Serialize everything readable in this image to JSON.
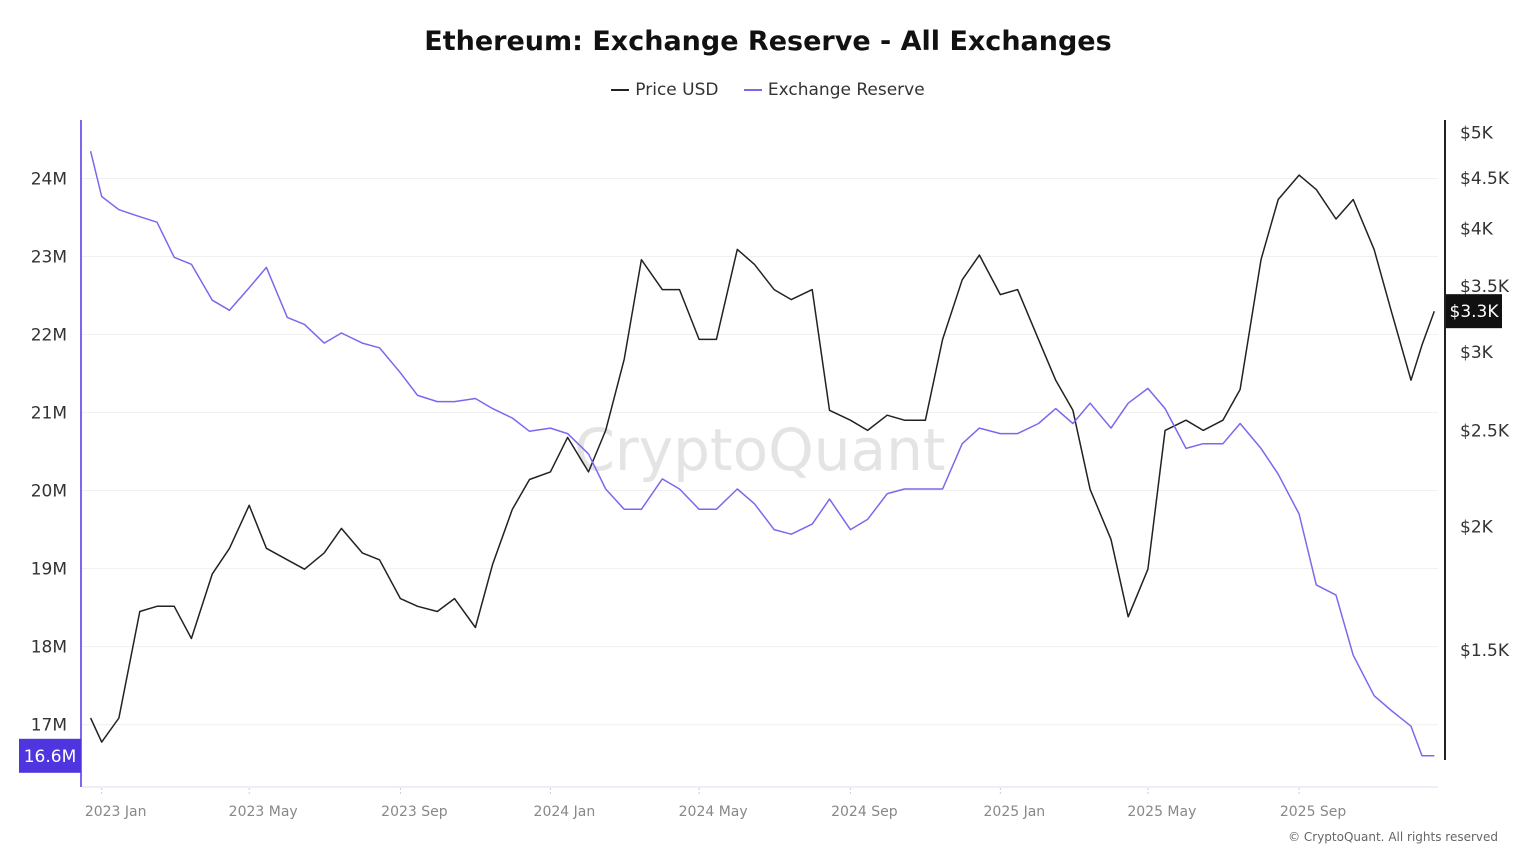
{
  "chart_data": {
    "type": "line",
    "title": "Ethereum: Exchange Reserve - All Exchanges",
    "legend_placement": "top",
    "grid": true,
    "watermark": "CryptoQuant",
    "copyright": "© CryptoQuant. All rights reserved",
    "xlim": [
      "2022-12-16",
      "2025-12-23"
    ],
    "x_ticks": [
      {
        "date": "2023-01-01",
        "label": "2023 Jan"
      },
      {
        "date": "2023-05-01",
        "label": "2023 May"
      },
      {
        "date": "2023-09-01",
        "label": "2023 Sep"
      },
      {
        "date": "2024-01-01",
        "label": "2024 Jan"
      },
      {
        "date": "2024-05-01",
        "label": "2024 May"
      },
      {
        "date": "2024-09-01",
        "label": "2024 Sep"
      },
      {
        "date": "2025-01-01",
        "label": "2025 Jan"
      },
      {
        "date": "2025-05-01",
        "label": "2025 May"
      },
      {
        "date": "2025-09-01",
        "label": "2025 Sep"
      }
    ],
    "left_axis": {
      "scale": "linear",
      "ylim": [
        16.2,
        24.75
      ],
      "color": "#7b68ee",
      "ticks": [
        {
          "v": 17,
          "label": "17M"
        },
        {
          "v": 18,
          "label": "18M"
        },
        {
          "v": 19,
          "label": "19M"
        },
        {
          "v": 20,
          "label": "20M"
        },
        {
          "v": 21,
          "label": "21M"
        },
        {
          "v": 22,
          "label": "22M"
        },
        {
          "v": 23,
          "label": "23M"
        },
        {
          "v": 24,
          "label": "24M"
        }
      ],
      "current_label": "16.6M",
      "current_value": 16.6,
      "current_color": "#4f35e0"
    },
    "right_axis": {
      "scale": "log",
      "ylim": [
        1090,
        5150
      ],
      "color": "#222222",
      "ticks": [
        {
          "v": 1500,
          "label": "$1.5K"
        },
        {
          "v": 2000,
          "label": "$2K"
        },
        {
          "v": 2500,
          "label": "$2.5K"
        },
        {
          "v": 3000,
          "label": "$3K"
        },
        {
          "v": 3500,
          "label": "$3.5K"
        },
        {
          "v": 4000,
          "label": "$4K"
        },
        {
          "v": 4500,
          "label": "$4.5K"
        },
        {
          "v": 5000,
          "label": "$5K"
        }
      ],
      "current_label": "$3.3K",
      "current_value": 3300,
      "current_color": "#111111"
    },
    "x": [
      "2022-12-23",
      "2023-01-01",
      "2023-01-15",
      "2023-02-01",
      "2023-02-15",
      "2023-03-01",
      "2023-03-15",
      "2023-04-01",
      "2023-04-15",
      "2023-05-01",
      "2023-05-15",
      "2023-06-01",
      "2023-06-15",
      "2023-07-01",
      "2023-07-15",
      "2023-08-01",
      "2023-08-15",
      "2023-09-01",
      "2023-09-15",
      "2023-10-01",
      "2023-10-15",
      "2023-11-01",
      "2023-11-15",
      "2023-12-01",
      "2023-12-15",
      "2024-01-01",
      "2024-01-15",
      "2024-02-01",
      "2024-02-15",
      "2024-03-01",
      "2024-03-15",
      "2024-04-01",
      "2024-04-15",
      "2024-05-01",
      "2024-05-15",
      "2024-06-01",
      "2024-06-15",
      "2024-07-01",
      "2024-07-15",
      "2024-08-01",
      "2024-08-15",
      "2024-09-01",
      "2024-09-15",
      "2024-10-01",
      "2024-10-15",
      "2024-11-01",
      "2024-11-15",
      "2024-12-01",
      "2024-12-15",
      "2025-01-01",
      "2025-01-15",
      "2025-02-01",
      "2025-02-15",
      "2025-03-01",
      "2025-03-15",
      "2025-04-01",
      "2025-04-15",
      "2025-05-01",
      "2025-05-15",
      "2025-06-01",
      "2025-06-15",
      "2025-07-01",
      "2025-07-15",
      "2025-08-01",
      "2025-08-15",
      "2025-09-01",
      "2025-09-15",
      "2025-10-01",
      "2025-10-15",
      "2025-11-01",
      "2025-11-15",
      "2025-12-01",
      "2025-12-10",
      "2025-12-20"
    ],
    "series": [
      {
        "name": "Price USD",
        "axis": "right",
        "color": "#222222",
        "values": [
          1280,
          1210,
          1280,
          1640,
          1660,
          1660,
          1540,
          1790,
          1900,
          2100,
          1900,
          1850,
          1810,
          1880,
          1990,
          1880,
          1850,
          1690,
          1660,
          1640,
          1690,
          1580,
          1830,
          2080,
          2230,
          2270,
          2460,
          2270,
          2500,
          2950,
          3720,
          3470,
          3470,
          3090,
          3090,
          3810,
          3680,
          3470,
          3390,
          3470,
          2620,
          2560,
          2500,
          2590,
          2560,
          2560,
          3090,
          3550,
          3760,
          3430,
          3470,
          3090,
          2810,
          2620,
          2180,
          1940,
          1620,
          1810,
          2500,
          2560,
          2500,
          2560,
          2750,
          3720,
          4280,
          4530,
          4380,
          4090,
          4280,
          3810,
          3300,
          2810,
          3050,
          3300
        ]
      },
      {
        "name": "Exchange Reserve",
        "axis": "left",
        "color": "#7b68ee",
        "values": [
          24.35,
          23.77,
          23.6,
          23.51,
          23.44,
          22.99,
          22.9,
          22.44,
          22.31,
          22.6,
          22.86,
          22.22,
          22.13,
          21.89,
          22.02,
          21.89,
          21.83,
          21.51,
          21.22,
          21.14,
          21.14,
          21.18,
          21.05,
          20.93,
          20.76,
          20.8,
          20.73,
          20.47,
          20.02,
          19.76,
          19.76,
          20.15,
          20.02,
          19.76,
          19.76,
          20.02,
          19.83,
          19.5,
          19.44,
          19.57,
          19.89,
          19.5,
          19.63,
          19.96,
          20.02,
          20.02,
          20.02,
          20.6,
          20.8,
          20.73,
          20.73,
          20.86,
          21.05,
          20.86,
          21.12,
          20.8,
          21.12,
          21.31,
          21.05,
          20.54,
          20.6,
          20.6,
          20.86,
          20.54,
          20.21,
          19.7,
          18.79,
          18.66,
          17.89,
          17.37,
          17.18,
          16.98,
          16.6,
          16.6
        ]
      }
    ]
  }
}
